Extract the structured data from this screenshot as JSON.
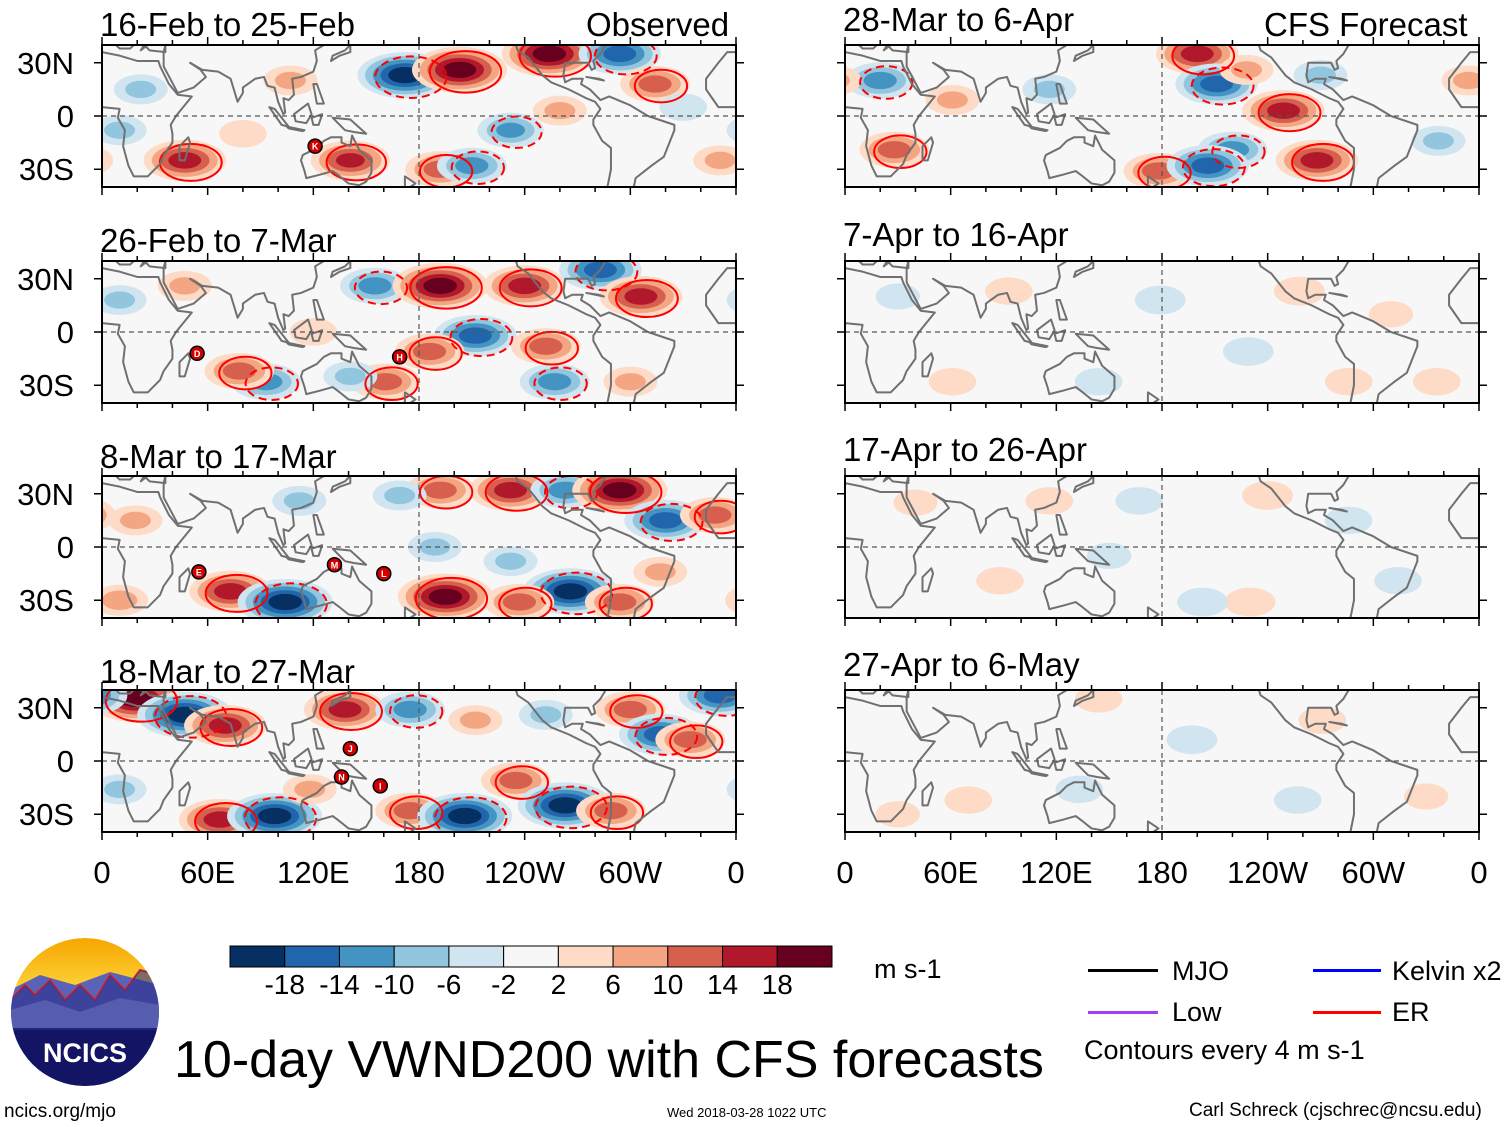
{
  "figure_title": "10-day VWND200 with CFS forecasts",
  "left_column_label": "Observed",
  "right_column_label": "CFS Forecast",
  "panels": [
    {
      "title": "16-Feb to 25-Feb",
      "column": "left",
      "storms": [
        {
          "id": "K",
          "lon": 121,
          "lat": -17
        }
      ]
    },
    {
      "title": "26-Feb to 7-Mar",
      "column": "left",
      "storms": [
        {
          "id": "D",
          "lon": 54,
          "lat": -12
        },
        {
          "id": "H",
          "lon": 169,
          "lat": -14
        }
      ]
    },
    {
      "title": "8-Mar to 17-Mar",
      "column": "left",
      "storms": [
        {
          "id": "E",
          "lon": 55,
          "lat": -14
        },
        {
          "id": "M",
          "lon": 132,
          "lat": -10
        },
        {
          "id": "L",
          "lon": 160,
          "lat": -15
        }
      ]
    },
    {
      "title": "18-Mar to 27-Mar",
      "column": "left",
      "storms": [
        {
          "id": "J",
          "lon": 141,
          "lat": 7
        },
        {
          "id": "N",
          "lon": 136,
          "lat": -9
        },
        {
          "id": "I",
          "lon": 158,
          "lat": -14
        }
      ]
    },
    {
      "title": "28-Mar to 6-Apr",
      "column": "right",
      "storms": []
    },
    {
      "title": "7-Apr to 16-Apr",
      "column": "right",
      "storms": []
    },
    {
      "title": "17-Apr to 26-Apr",
      "column": "right",
      "storms": []
    },
    {
      "title": "27-Apr to 6-May",
      "column": "right",
      "storms": []
    }
  ],
  "lat_labels": [
    "30N",
    "0",
    "30S"
  ],
  "lon_labels": [
    "0",
    "60E",
    "120E",
    "180",
    "120W",
    "60W",
    "0"
  ],
  "colorbar": {
    "units": "m s-1",
    "levels": [
      "-18",
      "-14",
      "-10",
      "-6",
      "-2",
      "2",
      "6",
      "10",
      "14",
      "18"
    ],
    "colors": [
      "#053061",
      "#2166ac",
      "#4393c3",
      "#92c5de",
      "#d1e5f0",
      "#f7f7f7",
      "#fddbc7",
      "#f4a582",
      "#d6604d",
      "#b2182b",
      "#67001f"
    ]
  },
  "legend": {
    "items": [
      {
        "label": "MJO",
        "color": "#000000"
      },
      {
        "label": "Kelvin x2",
        "color": "#0000ff"
      },
      {
        "label": "Low",
        "color": "#a040f0"
      },
      {
        "label": "ER",
        "color": "#ff0000"
      }
    ],
    "contour_note": "Contours every 4 m s-1"
  },
  "logo_text": "NCICS",
  "footer": {
    "website": "ncics.org/mjo",
    "timestamp": "Wed 2018-03-28 1022 UTC",
    "credit": "Carl Schreck (cjschrec@ncsu.edu)"
  }
}
